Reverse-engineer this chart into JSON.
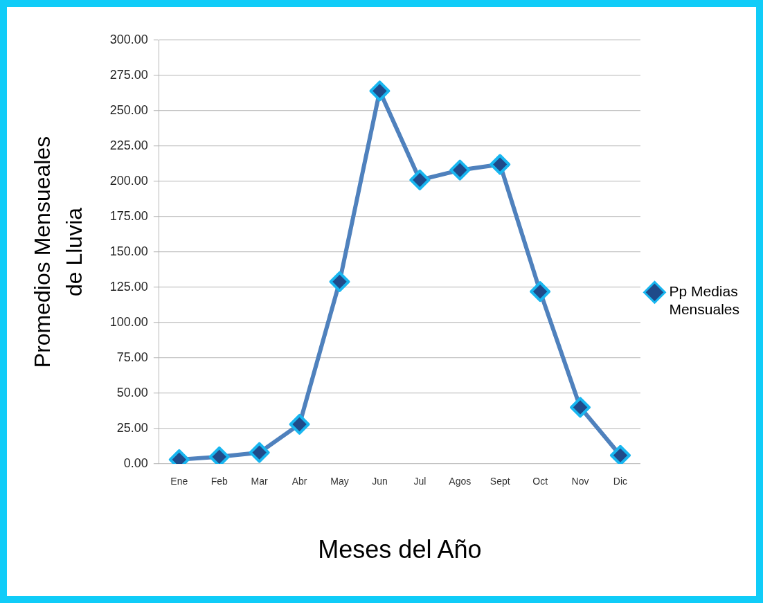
{
  "chart_data": {
    "type": "line",
    "xlabel": "Meses del Año",
    "ylabel": "Promedios Mensueales de Lluvia",
    "categories": [
      "Ene",
      "Feb",
      "Mar",
      "Abr",
      "May",
      "Jun",
      "Jul",
      "Agos",
      "Sept",
      "Oct",
      "Nov",
      "Dic"
    ],
    "series": [
      {
        "name": "Pp Medias Mensuales",
        "color": "#4f81bd",
        "values": [
          3,
          5,
          8,
          28,
          129,
          264,
          201,
          208,
          212,
          122,
          40,
          6
        ]
      }
    ],
    "ylim": [
      0,
      300
    ],
    "yticks": [
      {
        "value": 0,
        "label": "0.00"
      },
      {
        "value": 25,
        "label": "25.00"
      },
      {
        "value": 50,
        "label": "50.00"
      },
      {
        "value": 75,
        "label": "75.00"
      },
      {
        "value": 100,
        "label": "100.00"
      },
      {
        "value": 125,
        "label": "125.00"
      },
      {
        "value": 150,
        "label": "150.00"
      },
      {
        "value": 175,
        "label": "175.00"
      },
      {
        "value": 200,
        "label": "200.00"
      },
      {
        "value": 225,
        "label": "225.00"
      },
      {
        "value": 250,
        "label": "250.00"
      },
      {
        "value": 275,
        "label": "275.00"
      },
      {
        "value": 300,
        "label": "300.00"
      }
    ],
    "grid": "y",
    "legend": "right",
    "marker": "diamond",
    "line_style": "solid"
  }
}
